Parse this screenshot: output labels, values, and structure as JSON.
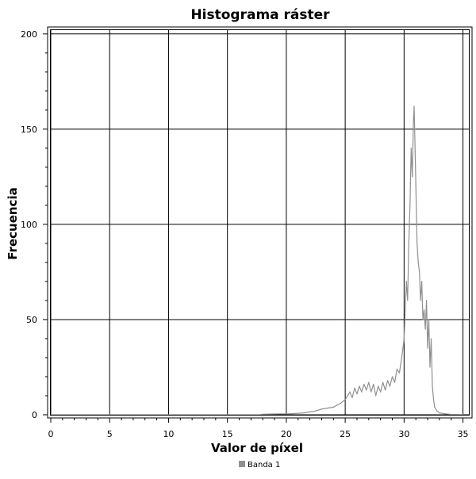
{
  "chart_data": {
    "type": "line",
    "title": "Histograma ráster",
    "xlabel": "Valor de píxel",
    "ylabel": "Frecuencia",
    "xlim": [
      0,
      35.5
    ],
    "ylim": [
      0,
      202
    ],
    "x_ticks": [
      0,
      5,
      10,
      15,
      20,
      25,
      30,
      35
    ],
    "y_ticks": [
      0,
      50,
      100,
      150,
      200
    ],
    "grid": true,
    "legend_position": "bottom-center",
    "series": [
      {
        "name": "Banda 1",
        "color": "#909090",
        "x": [
          0,
          17.7,
          18.0,
          19.0,
          20.0,
          20.5,
          21.0,
          21.5,
          22.0,
          22.5,
          23.0,
          23.5,
          24.0,
          24.3,
          24.6,
          25.0,
          25.2,
          25.4,
          25.6,
          25.8,
          26.0,
          26.2,
          26.4,
          26.6,
          26.8,
          27.0,
          27.2,
          27.4,
          27.6,
          27.8,
          28.0,
          28.2,
          28.4,
          28.6,
          28.8,
          29.0,
          29.2,
          29.4,
          29.6,
          29.8,
          30.0,
          30.1,
          30.2,
          30.3,
          30.4,
          30.5,
          30.6,
          30.7,
          30.8,
          30.85,
          30.9,
          31.0,
          31.1,
          31.2,
          31.3,
          31.4,
          31.5,
          31.6,
          31.7,
          31.8,
          31.9,
          32.0,
          32.1,
          32.2,
          32.3,
          32.4,
          32.5,
          32.6,
          32.8,
          33.0,
          33.5,
          34.0,
          35.0
        ],
        "y": [
          0,
          0,
          0.3,
          0.4,
          0.5,
          0.6,
          0.8,
          1.0,
          1.5,
          2.0,
          3.0,
          3.5,
          4.0,
          5.0,
          6.0,
          8.0,
          10.0,
          12.0,
          9.0,
          14.0,
          11.0,
          15.0,
          12.0,
          16.0,
          13.0,
          17.0,
          12.0,
          16.0,
          10.0,
          15.0,
          12.0,
          17.0,
          13.0,
          18.0,
          15.0,
          20.0,
          17.0,
          24.0,
          22.0,
          30.0,
          40.0,
          55.0,
          70.0,
          60.0,
          90.0,
          110.0,
          140.0,
          125.0,
          155.0,
          162.0,
          150.0,
          120.0,
          90.0,
          80.0,
          75.0,
          60.0,
          70.0,
          50.0,
          55.0,
          45.0,
          60.0,
          35.0,
          50.0,
          25.0,
          40.0,
          15.0,
          8.0,
          4.0,
          2.0,
          1.0,
          0.5,
          0.2,
          0.1
        ]
      }
    ]
  }
}
